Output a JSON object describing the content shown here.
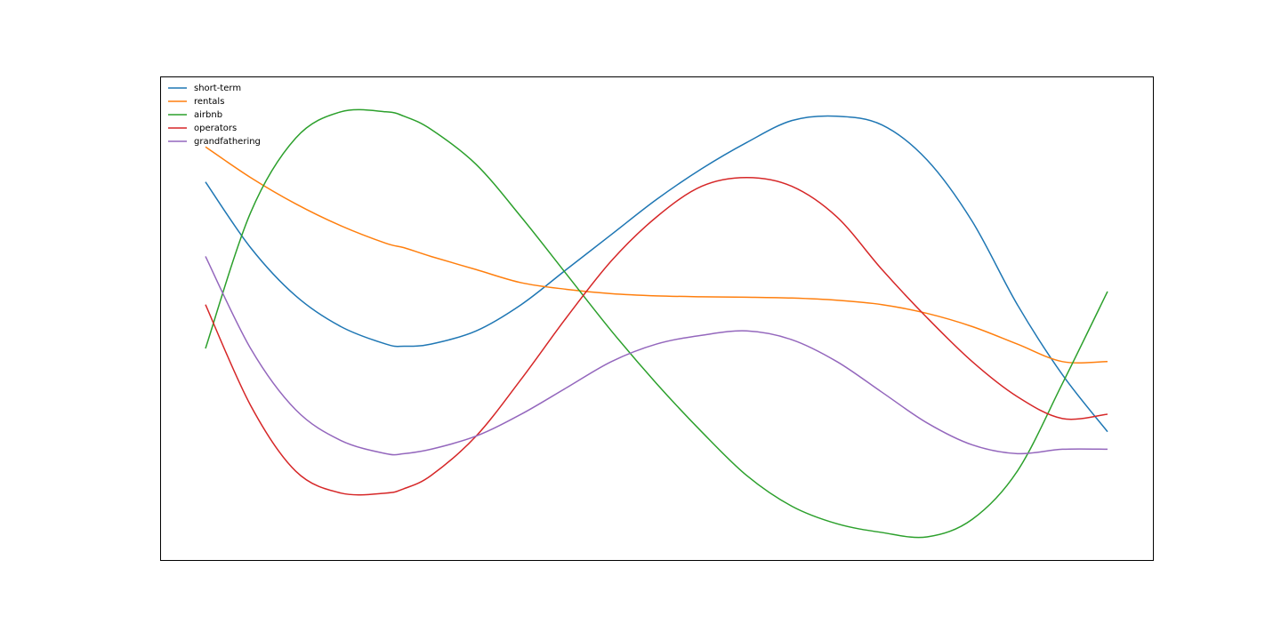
{
  "chart_data": {
    "type": "line",
    "title": "",
    "xlabel": "",
    "ylabel": "",
    "x_axis_visible": false,
    "y_axis_visible": false,
    "grid": false,
    "legend": {
      "placement": "top-left",
      "frame": false
    },
    "xlim": [
      0,
      1
    ],
    "ylim": [
      0,
      1
    ],
    "x": [
      0.0,
      0.05,
      0.1,
      0.15,
      0.2,
      0.22,
      0.25,
      0.3,
      0.35,
      0.4,
      0.45,
      0.5,
      0.55,
      0.6,
      0.65,
      0.7,
      0.75,
      0.8,
      0.85,
      0.9,
      0.95,
      1.0
    ],
    "series": [
      {
        "name": "short-term",
        "color": "#1f77b4",
        "values": [
          0.81,
          0.66,
          0.55,
          0.48,
          0.44,
          0.435,
          0.44,
          0.47,
          0.53,
          0.61,
          0.69,
          0.77,
          0.84,
          0.9,
          0.95,
          0.96,
          0.94,
          0.86,
          0.72,
          0.53,
          0.37,
          0.24
        ]
      },
      {
        "name": "rentals",
        "color": "#ff7f0e",
        "values": [
          0.89,
          0.82,
          0.76,
          0.71,
          0.67,
          0.66,
          0.64,
          0.61,
          0.58,
          0.565,
          0.555,
          0.55,
          0.548,
          0.547,
          0.545,
          0.54,
          0.53,
          0.51,
          0.48,
          0.44,
          0.4,
          0.4
        ]
      },
      {
        "name": "airbnb",
        "color": "#2ca02c",
        "values": [
          0.43,
          0.74,
          0.91,
          0.97,
          0.97,
          0.96,
          0.93,
          0.85,
          0.73,
          0.6,
          0.47,
          0.35,
          0.24,
          0.14,
          0.07,
          0.03,
          0.01,
          0.0,
          0.04,
          0.15,
          0.35,
          0.56
        ]
      },
      {
        "name": "operators",
        "color": "#d62728",
        "values": [
          0.53,
          0.3,
          0.15,
          0.1,
          0.1,
          0.11,
          0.14,
          0.23,
          0.36,
          0.5,
          0.63,
          0.73,
          0.8,
          0.82,
          0.8,
          0.73,
          0.61,
          0.5,
          0.4,
          0.32,
          0.27,
          0.28
        ]
      },
      {
        "name": "grandfathering",
        "color": "#9467bd",
        "values": [
          0.64,
          0.43,
          0.29,
          0.22,
          0.19,
          0.19,
          0.2,
          0.23,
          0.28,
          0.34,
          0.4,
          0.44,
          0.46,
          0.47,
          0.45,
          0.4,
          0.33,
          0.26,
          0.21,
          0.19,
          0.2,
          0.2
        ]
      }
    ]
  }
}
